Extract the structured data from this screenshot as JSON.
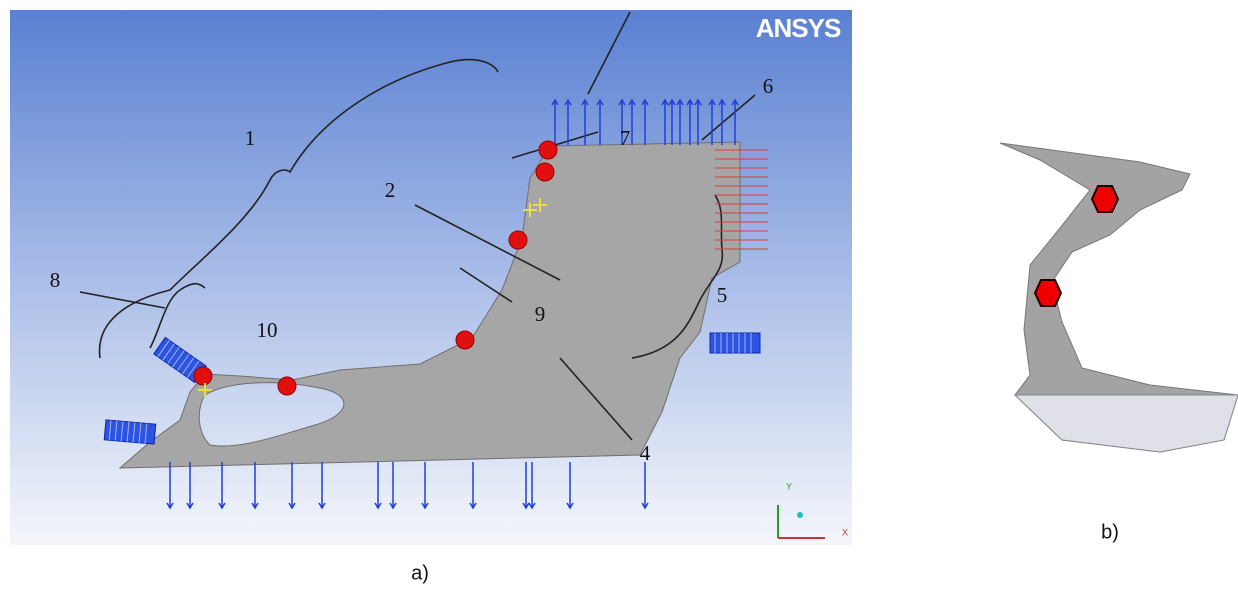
{
  "logo": "ANSYS",
  "labels": [
    "1",
    "2",
    "4",
    "5",
    "6",
    "7",
    "8",
    "9",
    "10"
  ],
  "triad": {
    "y": "Y",
    "x": "X"
  },
  "captions": {
    "a": "a)",
    "b": "b)"
  }
}
